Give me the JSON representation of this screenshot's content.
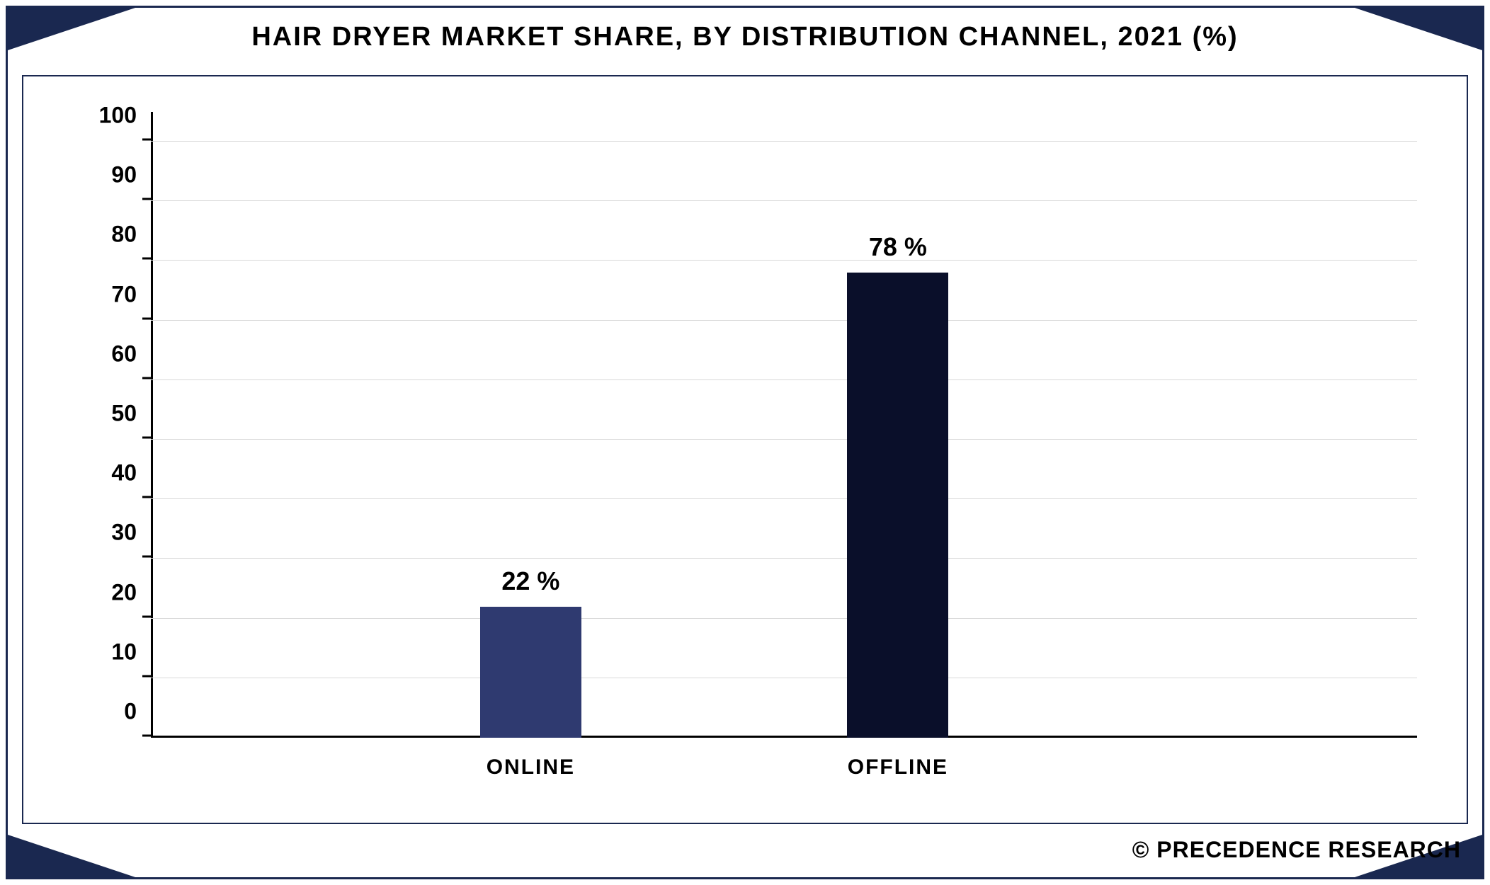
{
  "chart": {
    "type": "bar",
    "title": "HAIR DRYER MARKET SHARE, BY DISTRIBUTION CHANNEL, 2021 (%)",
    "title_fontsize": 38,
    "title_color": "#000000",
    "categories": [
      "ONLINE",
      "OFFLINE"
    ],
    "values": [
      22,
      78
    ],
    "value_labels": [
      "22 %",
      "78 %"
    ],
    "bar_colors": [
      "#2f3a70",
      "#0a0f2a"
    ],
    "bar_width_pct": 8,
    "bar_positions_pct": [
      26,
      55
    ],
    "ylim": [
      0,
      105
    ],
    "yticks": [
      0,
      10,
      20,
      30,
      40,
      50,
      60,
      70,
      80,
      90,
      100
    ],
    "ytick_labels": [
      "0",
      "10",
      "20",
      "30",
      "40",
      "50",
      "60",
      "70",
      "80",
      "90",
      "100"
    ],
    "ytick_fontsize": 32,
    "axis_color": "#000000",
    "grid_color": "#d8d8d8",
    "background_color": "#ffffff",
    "border_color": "#1a2850",
    "label_fontsize": 30,
    "value_label_fontsize": 36
  },
  "footer": {
    "text": "© PRECEDENCE RESEARCH",
    "fontsize": 32,
    "color": "#000000"
  }
}
